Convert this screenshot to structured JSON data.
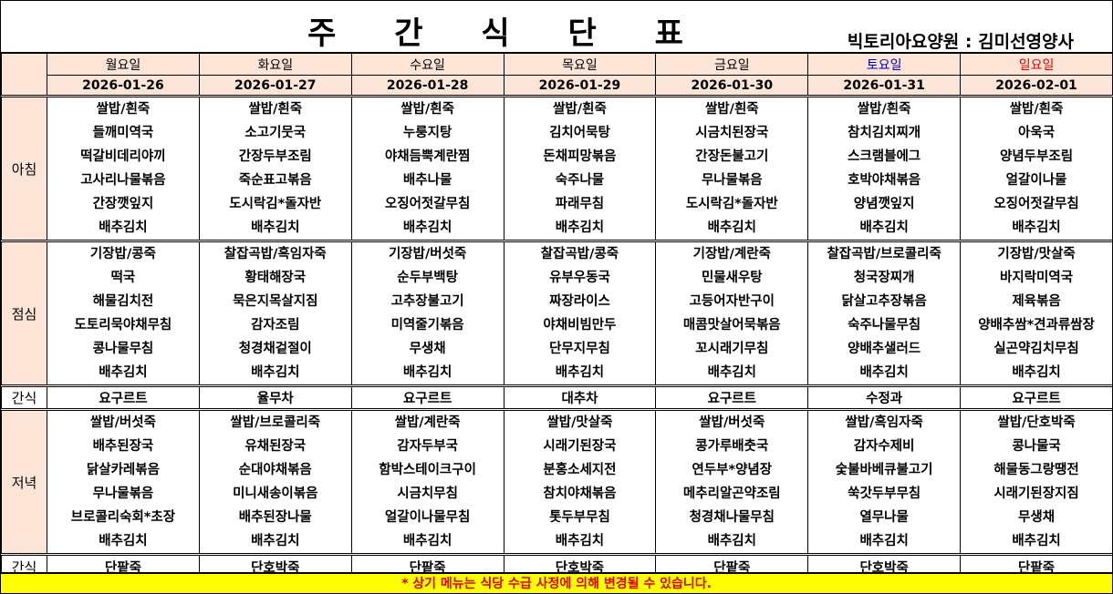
{
  "title": "주 간 식 단 표",
  "subtitle": "빅토리아요양원 : 김미선영양사",
  "days": [
    {
      "name": "월요일",
      "date": "2026-01-26"
    },
    {
      "name": "화요일",
      "date": "2026-01-27"
    },
    {
      "name": "수요일",
      "date": "2026-01-28"
    },
    {
      "name": "목요일",
      "date": "2026-01-29"
    },
    {
      "name": "금요일",
      "date": "2026-01-30"
    },
    {
      "name": "토요일",
      "date": "2026-01-31"
    },
    {
      "name": "일요일",
      "date": "2026-02-01"
    }
  ],
  "colors": {
    "saturday": "#0000cc",
    "sunday": "#e00000",
    "header_bg": "#fce4d6",
    "notice_bg": "#ffff00",
    "notice_text": "#e00000"
  },
  "meals": [
    {
      "label": "아침",
      "days": [
        [
          "쌀밥/흰죽",
          "들깨미역국",
          "떡갈비데리야끼",
          "고사리나물볶음",
          "간장깻잎지",
          "배추김치"
        ],
        [
          "쌀밥/흰죽",
          "소고기뭇국",
          "간장두부조림",
          "죽순표고볶음",
          "도시락김*돌자반",
          "배추김치"
        ],
        [
          "쌀밥/흰죽",
          "누룽지탕",
          "야채듬뿍계란찜",
          "배추나물",
          "오징어젓갈무침",
          "배추김치"
        ],
        [
          "쌀밥/흰죽",
          "김치어묵탕",
          "돈채피망볶음",
          "숙주나물",
          "파래무침",
          "배추김치"
        ],
        [
          "쌀밥/흰죽",
          "시금치된장국",
          "간장돈불고기",
          "무나물볶음",
          "도시락김*돌자반",
          "배추김치"
        ],
        [
          "쌀밥/흰죽",
          "참치김치찌개",
          "스크램블에그",
          "호박야채볶음",
          "양념깻잎지",
          "배추김치"
        ],
        [
          "쌀밥/흰죽",
          "아욱국",
          "양념두부조림",
          "얼갈이나물",
          "오징어젓갈무침",
          "배추김치"
        ]
      ]
    },
    {
      "label": "점심",
      "days": [
        [
          "기장밥/콩죽",
          "떡국",
          "해물김치전",
          "도토리묵야채무침",
          "콩나물무침",
          "배추김치"
        ],
        [
          "찰잡곡밥/흑임자죽",
          "황태해장국",
          "묵은지목살지짐",
          "감자조림",
          "청경채겉절이",
          "배추김치"
        ],
        [
          "기장밥/버섯죽",
          "순두부백탕",
          "고추장불고기",
          "미역줄기볶음",
          "무생채",
          "배추김치"
        ],
        [
          "찰잡곡밥/콩죽",
          "유부우동국",
          "짜장라이스",
          "야채비빔만두",
          "단무지무침",
          "배추김치"
        ],
        [
          "기장밥/계란죽",
          "민물새우탕",
          "고등어자반구이",
          "매콤맛살어묵볶음",
          "꼬시래기무침",
          "배추김치"
        ],
        [
          "찰잡곡밥/브로콜리죽",
          "청국장찌개",
          "닭살고추장볶음",
          "숙주나물무침",
          "양배추샐러드",
          "배추김치"
        ],
        [
          "기장밥/맛살죽",
          "바지락미역국",
          "제육볶음",
          "양배추쌈*견과류쌈장",
          "실곤약김치무침",
          "배추김치"
        ]
      ]
    },
    {
      "label": "간식",
      "snack": true,
      "days": [
        "요구르트",
        "율무차",
        "요구르트",
        "대추차",
        "요구르트",
        "수정과",
        "요구르트"
      ]
    },
    {
      "label": "저녁",
      "days": [
        [
          "쌀밥/버섯죽",
          "배추된장국",
          "닭살카레볶음",
          "무나물볶음",
          "브로콜리숙회*초장",
          "배추김치"
        ],
        [
          "쌀밥/브로콜리죽",
          "유채된장국",
          "순대야채볶음",
          "미니새송이볶음",
          "배추된장나물",
          "배추김치"
        ],
        [
          "쌀밥/계란죽",
          "감자두부국",
          "함박스테이크구이",
          "시금치무침",
          "얼갈이나물무침",
          "배추김치"
        ],
        [
          "쌀밥/맛살죽",
          "시래기된장국",
          "분홍소세지전",
          "참치야채볶음",
          "톳두부무침",
          "배추김치"
        ],
        [
          "쌀밥/버섯죽",
          "콩가루배춧국",
          "연두부*양념장",
          "메추리알곤약조림",
          "청경채나물무침",
          "배추김치"
        ],
        [
          "쌀밥/흑임자죽",
          "감자수제비",
          "숯불바베큐불고기",
          "쑥갓두부무침",
          "열무나물",
          "배추김치"
        ],
        [
          "쌀밥/단호박죽",
          "콩나물국",
          "해물동그랑땡전",
          "시래기된장지짐",
          "무생채",
          "배추김치"
        ]
      ]
    },
    {
      "label": "간식",
      "snack": true,
      "days": [
        "단팥죽",
        "단호박죽",
        "단팥죽",
        "단호박죽",
        "단팥죽",
        "단호박죽",
        "단팥죽"
      ]
    }
  ],
  "notice": "* 상기 메뉴는 식당 수급 사정에 의해 변경될 수 있습니다."
}
